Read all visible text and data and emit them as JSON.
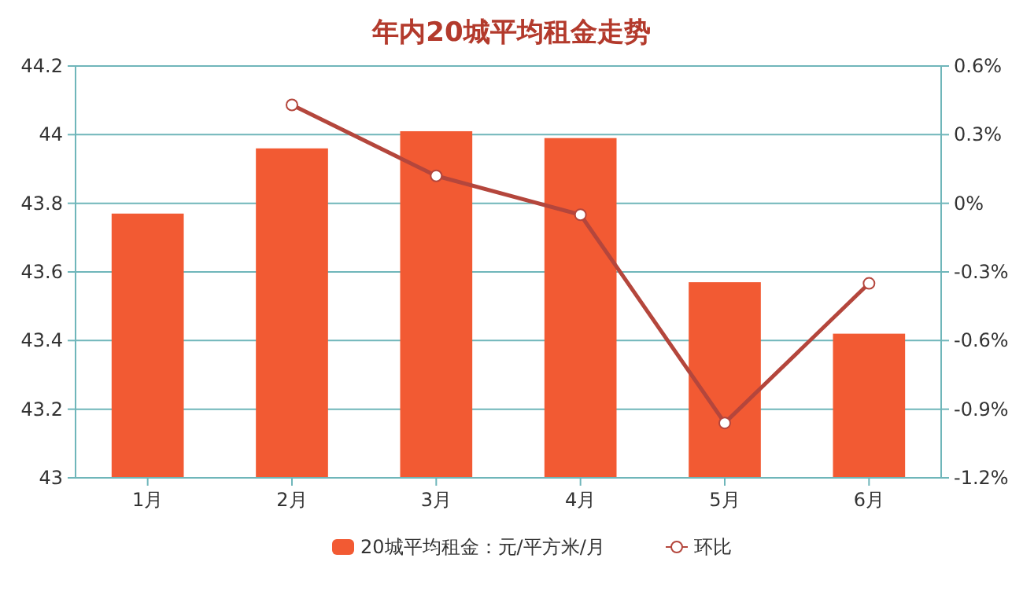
{
  "chart_data": {
    "type": "bar",
    "title": "年内20城平均租金走势",
    "categories": [
      "1月",
      "2月",
      "3月",
      "4月",
      "5月",
      "6月"
    ],
    "series": [
      {
        "name": "20城平均租金：元/平方米/月",
        "color": "#f25a33",
        "values": [
          43.77,
          43.96,
          44.01,
          43.99,
          43.57,
          43.42
        ]
      },
      {
        "name": "环比",
        "type": "line",
        "axis": "y2",
        "color": "#b4463c",
        "marker": "circle",
        "values": [
          null,
          0.43,
          0.12,
          -0.05,
          -0.96,
          -0.35
        ]
      }
    ],
    "ylim": [
      43,
      44.2
    ],
    "yticks": [
      43,
      43.2,
      43.4,
      43.6,
      43.8,
      44,
      44.2
    ],
    "y2lim": [
      -1.2,
      0.6
    ],
    "y2ticks": [
      {
        "value": -1.2,
        "label": "-1.2%"
      },
      {
        "value": -0.9,
        "label": "-0.9%"
      },
      {
        "value": -0.6,
        "label": "-0.6%"
      },
      {
        "value": -0.3,
        "label": "-0.3%"
      },
      {
        "value": 0,
        "label": "0%"
      },
      {
        "value": 0.3,
        "label": "0.3%"
      },
      {
        "value": 0.6,
        "label": "0.6%"
      }
    ],
    "grid": "y",
    "legend": "bottom"
  }
}
